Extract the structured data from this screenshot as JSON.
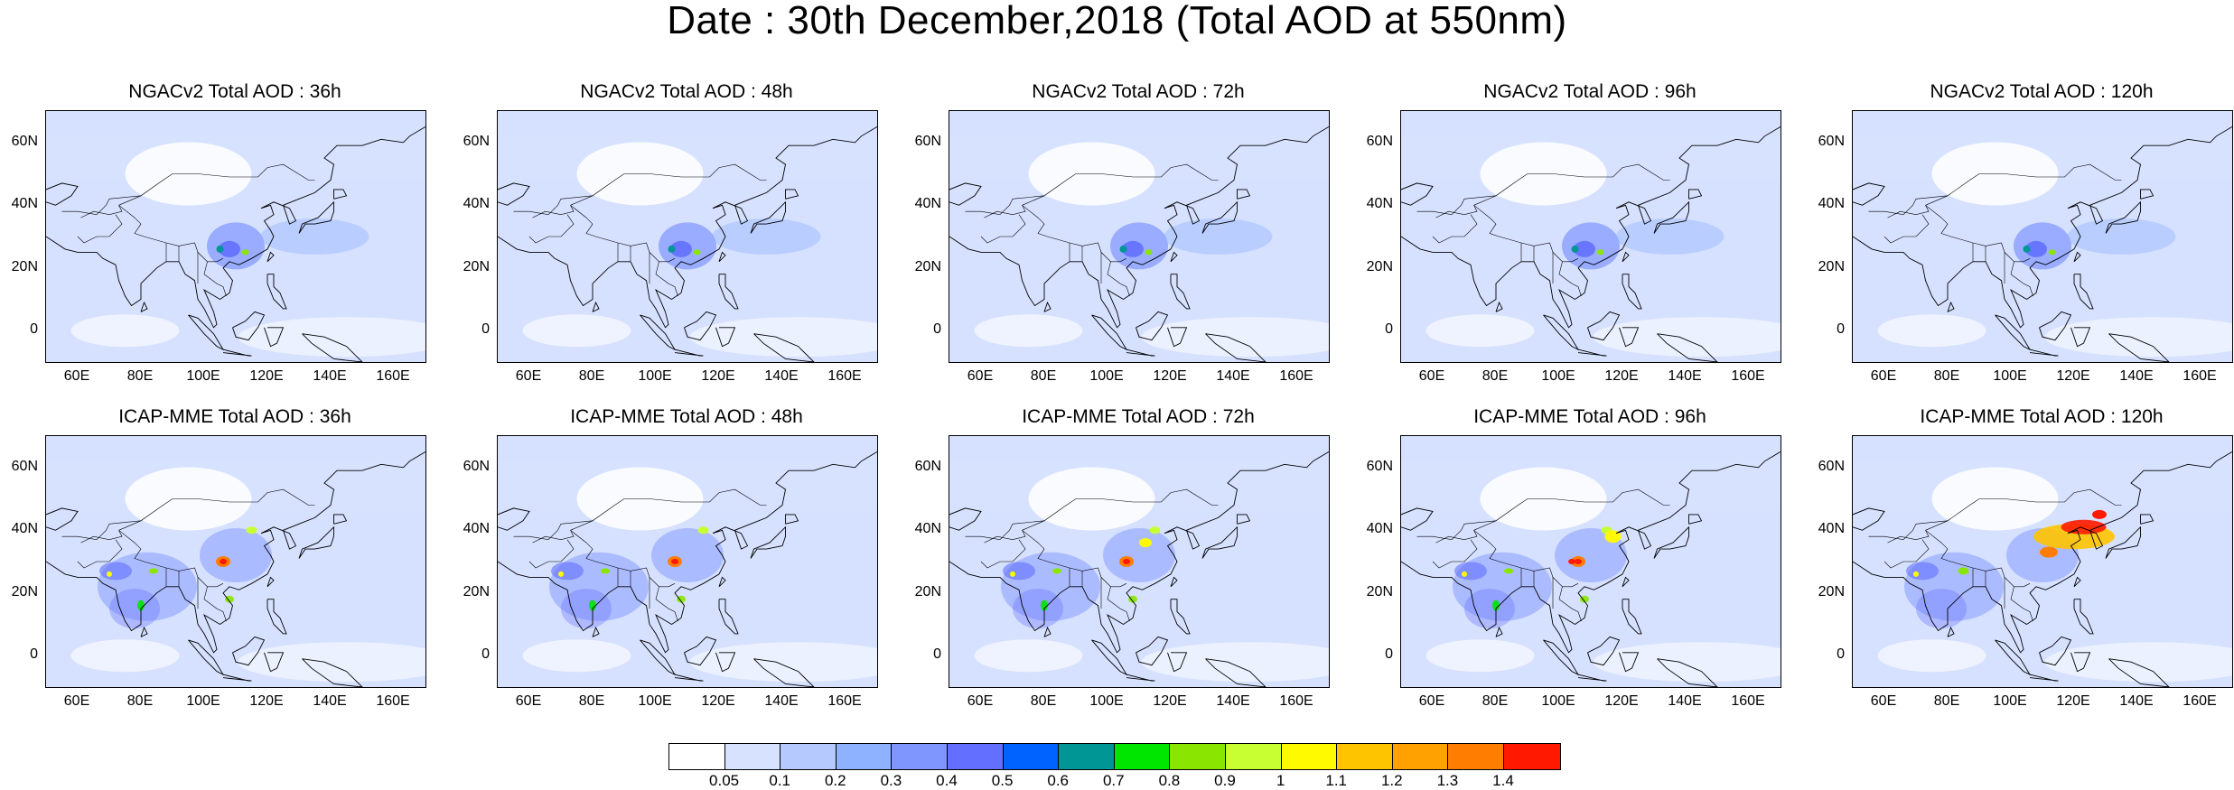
{
  "title": "Date : 30th December,2018 (Total AOD at 550nm)",
  "panels": [
    {
      "title": "NGACv2 Total AOD : 36h",
      "row": 0,
      "col": 0
    },
    {
      "title": "NGACv2 Total AOD : 48h",
      "row": 0,
      "col": 1
    },
    {
      "title": "NGACv2 Total AOD : 72h",
      "row": 0,
      "col": 2
    },
    {
      "title": "NGACv2 Total AOD : 96h",
      "row": 0,
      "col": 3
    },
    {
      "title": "NGACv2 Total AOD : 120h",
      "row": 0,
      "col": 4
    },
    {
      "title": "ICAP-MME Total AOD : 36h",
      "row": 1,
      "col": 0
    },
    {
      "title": "ICAP-MME Total AOD : 48h",
      "row": 1,
      "col": 1
    },
    {
      "title": "ICAP-MME Total AOD : 72h",
      "row": 1,
      "col": 2
    },
    {
      "title": "ICAP-MME Total AOD : 96h",
      "row": 1,
      "col": 3
    },
    {
      "title": "ICAP-MME Total AOD : 120h",
      "row": 1,
      "col": 4
    }
  ],
  "axes": {
    "y_ticks": [
      "60N",
      "40N",
      "20N",
      "0"
    ],
    "x_ticks": [
      "60E",
      "80E",
      "100E",
      "120E",
      "140E",
      "160E"
    ],
    "lat_range": [
      -10,
      70
    ],
    "lon_range": [
      50,
      170
    ]
  },
  "colorbar": {
    "labels": [
      "0.05",
      "0.1",
      "0.2",
      "0.3",
      "0.4",
      "0.5",
      "0.6",
      "0.7",
      "0.8",
      "0.9",
      "1",
      "1.1",
      "1.2",
      "1.3",
      "1.4"
    ],
    "colors": [
      "#ffffff",
      "#d6e2ff",
      "#b5c9ff",
      "#8eb2ff",
      "#7f96ff",
      "#6370ff",
      "#0063ff",
      "#009696",
      "#00e600",
      "#8ae600",
      "#c8ff32",
      "#fffa00",
      "#ffc400",
      "#ffa100",
      "#ff7d00",
      "#ff1900"
    ]
  }
}
